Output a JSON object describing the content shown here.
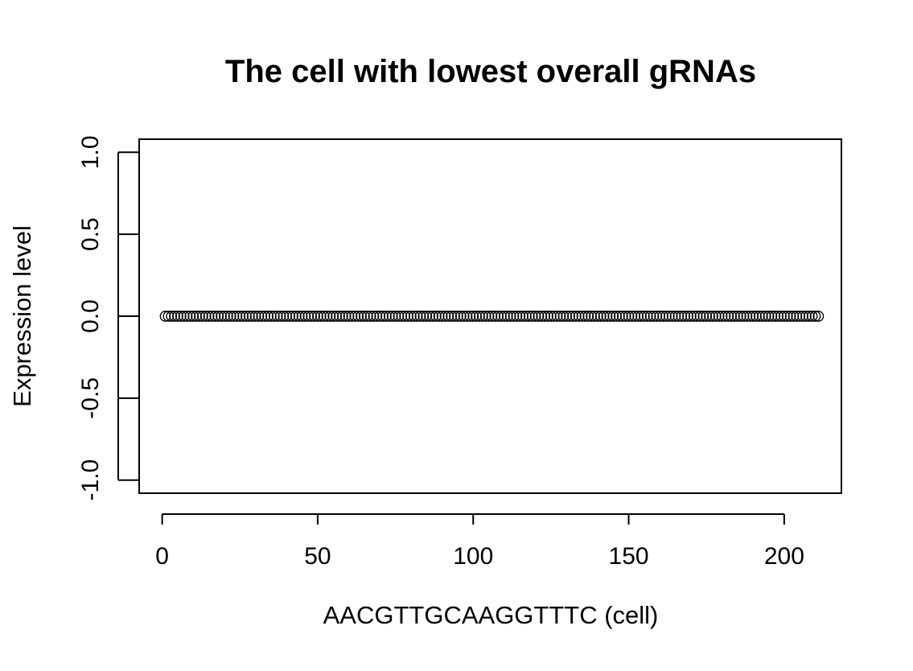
{
  "chart_data": {
    "type": "scatter",
    "title": "The cell with lowest overall gRNAs",
    "xlabel": "AACGTTGCAAGGTTTC (cell)",
    "ylabel": "Expression level",
    "xlim": [
      -7.4,
      218.4
    ],
    "ylim": [
      -1.08,
      1.08
    ],
    "x_ticks": [
      0,
      50,
      100,
      150,
      200
    ],
    "x_tick_labels": [
      "0",
      "50",
      "100",
      "150",
      "200"
    ],
    "y_ticks": [
      -1.0,
      -0.5,
      0.0,
      0.5,
      1.0
    ],
    "y_tick_labels": [
      "-1.0",
      "-0.5",
      "0.0",
      "0.5",
      "1.0"
    ],
    "x_start": 1,
    "x_end": 211,
    "y_constant": 0,
    "marker": "open-circle",
    "grid": false,
    "legend": "none",
    "colors": {
      "marker": "#000000",
      "axis": "#000000",
      "background": "#ffffff"
    }
  }
}
